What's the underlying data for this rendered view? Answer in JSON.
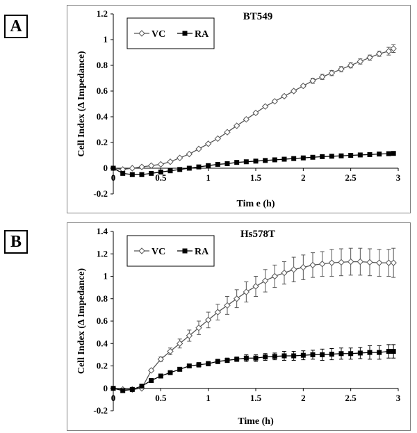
{
  "panels": [
    {
      "label": "A"
    },
    {
      "label": "B"
    }
  ],
  "chart_data": [
    {
      "type": "line",
      "title": "BT549",
      "xlabel": "Tim e (h)",
      "ylabel": "Cell Index (Δ Impedance)",
      "xlim": [
        0,
        3
      ],
      "ylim": [
        -0.2,
        1.2
      ],
      "xticks": [
        "0",
        "0.5",
        "1",
        "1.5",
        "2",
        "2.5",
        "3"
      ],
      "yticks": [
        "-0.2",
        "0",
        "0.2",
        "0.4",
        "0.6",
        "0.8",
        "1",
        "1.2"
      ],
      "grid": false,
      "legend": "top-left",
      "series": [
        {
          "name": "VC",
          "marker": "open-diamond",
          "color": "#555555",
          "x": [
            0,
            0.1,
            0.2,
            0.3,
            0.4,
            0.5,
            0.6,
            0.7,
            0.8,
            0.9,
            1.0,
            1.1,
            1.2,
            1.3,
            1.4,
            1.5,
            1.6,
            1.7,
            1.8,
            1.9,
            2.0,
            2.1,
            2.2,
            2.3,
            2.4,
            2.5,
            2.6,
            2.7,
            2.8,
            2.9,
            2.95
          ],
          "y": [
            0,
            -0.01,
            0,
            0.01,
            0.02,
            0.03,
            0.05,
            0.08,
            0.11,
            0.15,
            0.19,
            0.23,
            0.28,
            0.33,
            0.38,
            0.43,
            0.48,
            0.52,
            0.56,
            0.6,
            0.64,
            0.68,
            0.71,
            0.74,
            0.77,
            0.8,
            0.83,
            0.86,
            0.89,
            0.91,
            0.93
          ],
          "error": [
            0,
            0,
            0,
            0,
            0,
            0,
            0,
            0,
            0,
            0,
            0,
            0,
            0,
            0,
            0.01,
            0.01,
            0.01,
            0.01,
            0.01,
            0.01,
            0.01,
            0.02,
            0.02,
            0.02,
            0.02,
            0.02,
            0.02,
            0.02,
            0.02,
            0.03,
            0.03
          ]
        },
        {
          "name": "RA",
          "marker": "filled-square",
          "color": "#000000",
          "x": [
            0,
            0.1,
            0.2,
            0.3,
            0.4,
            0.5,
            0.6,
            0.7,
            0.8,
            0.9,
            1.0,
            1.1,
            1.2,
            1.3,
            1.4,
            1.5,
            1.6,
            1.7,
            1.8,
            1.9,
            2.0,
            2.1,
            2.2,
            2.3,
            2.4,
            2.5,
            2.6,
            2.7,
            2.8,
            2.9,
            2.95
          ],
          "y": [
            0,
            -0.04,
            -0.05,
            -0.05,
            -0.04,
            -0.03,
            -0.02,
            -0.01,
            0,
            0.01,
            0.02,
            0.03,
            0.035,
            0.045,
            0.05,
            0.055,
            0.06,
            0.065,
            0.07,
            0.075,
            0.08,
            0.085,
            0.09,
            0.093,
            0.096,
            0.1,
            0.103,
            0.106,
            0.11,
            0.113,
            0.115
          ],
          "error": [
            0,
            0,
            0,
            0,
            0,
            0,
            0,
            0,
            0,
            0,
            0,
            0,
            0,
            0,
            0,
            0,
            0,
            0,
            0,
            0,
            0,
            0,
            0,
            0,
            0,
            0,
            0,
            0,
            0,
            0,
            0
          ]
        }
      ]
    },
    {
      "type": "line",
      "title": "Hs578T",
      "xlabel": "Time (h)",
      "ylabel": "Cell Index (Δ Impedance)",
      "xlim": [
        0,
        3
      ],
      "ylim": [
        -0.2,
        1.4
      ],
      "xticks": [
        "0",
        "0.5",
        "1",
        "1.5",
        "2",
        "2.5",
        "3"
      ],
      "yticks": [
        "-0.2",
        "0",
        "0.2",
        "0.4",
        "0.6",
        "0.8",
        "1",
        "1.2",
        "1.4"
      ],
      "grid": false,
      "legend": "top-left",
      "series": [
        {
          "name": "VC",
          "marker": "open-diamond",
          "color": "#555555",
          "x": [
            0,
            0.1,
            0.2,
            0.3,
            0.4,
            0.5,
            0.6,
            0.7,
            0.8,
            0.9,
            1.0,
            1.1,
            1.2,
            1.3,
            1.4,
            1.5,
            1.6,
            1.7,
            1.8,
            1.9,
            2.0,
            2.1,
            2.2,
            2.3,
            2.4,
            2.5,
            2.6,
            2.7,
            2.8,
            2.9,
            2.95
          ],
          "y": [
            0,
            -0.01,
            -0.01,
            0,
            0.16,
            0.26,
            0.33,
            0.4,
            0.47,
            0.54,
            0.61,
            0.68,
            0.74,
            0.8,
            0.86,
            0.91,
            0.96,
            1.0,
            1.03,
            1.06,
            1.08,
            1.1,
            1.11,
            1.12,
            1.125,
            1.13,
            1.13,
            1.125,
            1.12,
            1.12,
            1.12
          ],
          "error": [
            0,
            0,
            0,
            0,
            0.01,
            0.02,
            0.03,
            0.04,
            0.05,
            0.06,
            0.07,
            0.07,
            0.08,
            0.08,
            0.09,
            0.09,
            0.1,
            0.1,
            0.1,
            0.11,
            0.11,
            0.11,
            0.11,
            0.12,
            0.12,
            0.12,
            0.12,
            0.12,
            0.12,
            0.12,
            0.13
          ]
        },
        {
          "name": "RA",
          "marker": "filled-square",
          "color": "#000000",
          "x": [
            0,
            0.1,
            0.2,
            0.3,
            0.4,
            0.5,
            0.6,
            0.7,
            0.8,
            0.9,
            1.0,
            1.1,
            1.2,
            1.3,
            1.4,
            1.5,
            1.6,
            1.7,
            1.8,
            1.9,
            2.0,
            2.1,
            2.2,
            2.3,
            2.4,
            2.5,
            2.6,
            2.7,
            2.8,
            2.9,
            2.95
          ],
          "y": [
            0,
            -0.02,
            -0.01,
            0.02,
            0.07,
            0.11,
            0.14,
            0.17,
            0.2,
            0.21,
            0.22,
            0.24,
            0.25,
            0.26,
            0.27,
            0.27,
            0.28,
            0.285,
            0.29,
            0.29,
            0.295,
            0.3,
            0.3,
            0.305,
            0.31,
            0.31,
            0.315,
            0.32,
            0.32,
            0.33,
            0.33
          ],
          "error": [
            0,
            0,
            0,
            0,
            0.01,
            0.01,
            0.01,
            0.01,
            0.01,
            0.02,
            0.02,
            0.02,
            0.02,
            0.02,
            0.03,
            0.03,
            0.03,
            0.03,
            0.04,
            0.04,
            0.04,
            0.04,
            0.05,
            0.05,
            0.05,
            0.05,
            0.05,
            0.06,
            0.06,
            0.06,
            0.06
          ]
        }
      ]
    }
  ]
}
